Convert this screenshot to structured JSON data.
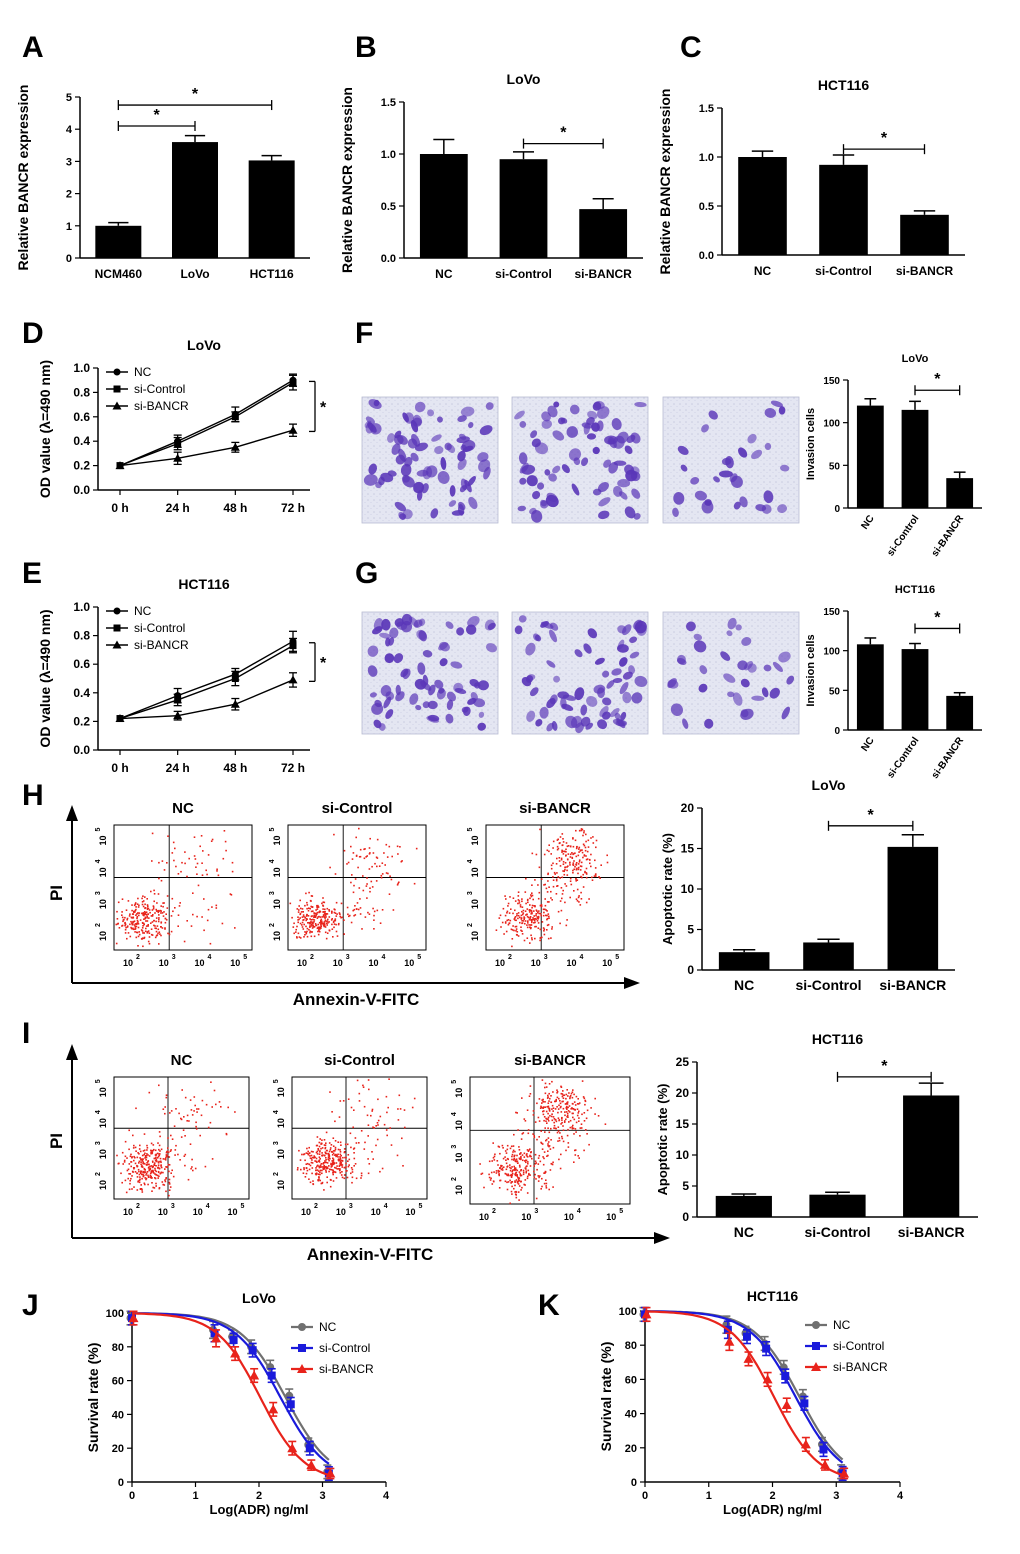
{
  "chart_data": [
    {
      "panel": "A",
      "type": "bar",
      "title": "",
      "xlabel": "",
      "ylabel": "Relative  BANCR expression",
      "categories": [
        "NCM460",
        "LoVo",
        "HCT116"
      ],
      "values": [
        1.0,
        3.6,
        3.03
      ],
      "errors": [
        0.1,
        0.2,
        0.15
      ],
      "ylim": [
        0,
        5
      ],
      "yticks": [
        "0",
        "1",
        "2",
        "3",
        "4",
        "5"
      ],
      "annotations": [
        {
          "from": 0,
          "to": 1,
          "y": 4.1,
          "text": "*"
        },
        {
          "from": 0,
          "to": 2,
          "y": 4.75,
          "text": "*"
        }
      ]
    },
    {
      "panel": "B",
      "type": "bar",
      "title": "LoVo",
      "xlabel": "",
      "ylabel": "Relative  BANCR expression",
      "categories": [
        "NC",
        "si-Control",
        "si-BANCR"
      ],
      "values": [
        1.0,
        0.95,
        0.47
      ],
      "errors": [
        0.14,
        0.07,
        0.1
      ],
      "ylim": [
        0,
        1.5
      ],
      "yticks": [
        "0.0",
        "0.5",
        "1.0",
        "1.5"
      ],
      "annotations": [
        {
          "from": 1,
          "to": 2,
          "y": 1.1,
          "text": "*"
        }
      ]
    },
    {
      "panel": "C",
      "type": "bar",
      "title": "HCT116",
      "xlabel": "",
      "ylabel": "Relative  BANCR expression",
      "categories": [
        "NC",
        "si-Control",
        "si-BANCR"
      ],
      "values": [
        1.0,
        0.92,
        0.41
      ],
      "errors": [
        0.06,
        0.1,
        0.04
      ],
      "ylim": [
        0,
        1.5
      ],
      "yticks": [
        "0.0",
        "0.5",
        "1.0",
        "1.5"
      ],
      "annotations": [
        {
          "from": 1,
          "to": 2,
          "y": 1.08,
          "text": "*"
        }
      ]
    },
    {
      "panel": "D",
      "type": "line",
      "title": "LoVo",
      "xlabel": "",
      "ylabel": "OD value (λ=490 nm)",
      "categories": [
        "0 h",
        "24 h",
        "48 h",
        "72 h"
      ],
      "series": [
        {
          "name": "NC",
          "marker": "circle",
          "values": [
            0.2,
            0.4,
            0.62,
            0.9
          ],
          "errors": [
            0,
            0.05,
            0.06,
            0.05
          ]
        },
        {
          "name": "si-Control",
          "marker": "square",
          "values": [
            0.2,
            0.38,
            0.6,
            0.88
          ],
          "errors": [
            0,
            0.05,
            0.04,
            0.06
          ]
        },
        {
          "name": "si-BANCR",
          "marker": "triangle",
          "values": [
            0.2,
            0.26,
            0.35,
            0.49
          ],
          "errors": [
            0,
            0.05,
            0.04,
            0.05
          ]
        }
      ],
      "ylim": [
        0,
        1.0
      ],
      "yticks": [
        "0.0",
        "0.2",
        "0.4",
        "0.6",
        "0.8",
        "1.0"
      ],
      "annotations": [
        {
          "text": "*"
        }
      ]
    },
    {
      "panel": "E",
      "type": "line",
      "title": "HCT116",
      "xlabel": "",
      "ylabel": "OD value (λ=490 nm)",
      "categories": [
        "0 h",
        "24 h",
        "48 h",
        "72 h"
      ],
      "series": [
        {
          "name": "NC",
          "marker": "circle",
          "values": [
            0.22,
            0.38,
            0.53,
            0.76
          ],
          "errors": [
            0,
            0.05,
            0.04,
            0.07
          ]
        },
        {
          "name": "si-Control",
          "marker": "square",
          "values": [
            0.22,
            0.35,
            0.5,
            0.73
          ],
          "errors": [
            0,
            0.04,
            0.05,
            0.05
          ]
        },
        {
          "name": "si-BANCR",
          "marker": "triangle",
          "values": [
            0.22,
            0.24,
            0.32,
            0.49
          ],
          "errors": [
            0,
            0.03,
            0.04,
            0.05
          ]
        }
      ],
      "ylim": [
        0,
        1.0
      ],
      "yticks": [
        "0.0",
        "0.2",
        "0.4",
        "0.6",
        "0.8",
        "1.0"
      ],
      "annotations": [
        {
          "text": "*"
        }
      ]
    },
    {
      "panel": "F",
      "type": "bar",
      "title": "LoVo",
      "xlabel": "",
      "ylabel": "Invasion cells",
      "categories": [
        "NC",
        "si-Control",
        "si-BANCR"
      ],
      "values": [
        120,
        115,
        35
      ],
      "errors": [
        8,
        10,
        7
      ],
      "ylim": [
        0,
        150
      ],
      "yticks": [
        "0",
        "50",
        "100",
        "150"
      ],
      "annotations": [
        {
          "from": 1,
          "to": 2,
          "y": 138,
          "text": "*"
        }
      ]
    },
    {
      "panel": "G",
      "type": "bar",
      "title": "HCT116",
      "xlabel": "",
      "ylabel": "Invasion cells",
      "categories": [
        "NC",
        "si-Control",
        "si-BANCR"
      ],
      "values": [
        108,
        102,
        43
      ],
      "errors": [
        8,
        7,
        4
      ],
      "ylim": [
        0,
        150
      ],
      "yticks": [
        "0",
        "50",
        "100",
        "150"
      ],
      "annotations": [
        {
          "from": 1,
          "to": 2,
          "y": 128,
          "text": "*"
        }
      ]
    },
    {
      "panel": "H",
      "type": "scatter",
      "kind": "flow cytometry",
      "xlabel": "Annexin-V-FITC",
      "ylabel": "PI",
      "plots": [
        "NC",
        "si-Control",
        "si-BANCR"
      ],
      "axis_ticks": [
        "10",
        "10",
        "10",
        "10"
      ],
      "tick_exponents": [
        "2",
        "3",
        "4",
        "5"
      ],
      "dot_color": "#e8231b"
    },
    {
      "panel": "H",
      "type": "bar",
      "title": "LoVo",
      "xlabel": "",
      "ylabel": "Apoptotic rate (%)",
      "categories": [
        "NC",
        "si-Control",
        "si-BANCR"
      ],
      "values": [
        2.2,
        3.4,
        15.2
      ],
      "errors": [
        0.3,
        0.4,
        1.5
      ],
      "ylim": [
        0,
        20
      ],
      "yticks": [
        "0",
        "5",
        "10",
        "15",
        "20"
      ],
      "annotations": [
        {
          "from": 1,
          "to": 2,
          "y": 17.8,
          "text": "*"
        }
      ]
    },
    {
      "panel": "I",
      "type": "scatter",
      "kind": "flow cytometry",
      "xlabel": "Annexin-V-FITC",
      "ylabel": "PI",
      "plots": [
        "NC",
        "si-Control",
        "si-BANCR"
      ],
      "axis_ticks": [
        "10",
        "10",
        "10",
        "10"
      ],
      "tick_exponents": [
        "2",
        "3",
        "4",
        "5"
      ],
      "dot_color": "#e8231b"
    },
    {
      "panel": "I",
      "type": "bar",
      "title": "HCT116",
      "xlabel": "",
      "ylabel": "Apoptotic rate (%)",
      "categories": [
        "NC",
        "si-Control",
        "si-BANCR"
      ],
      "values": [
        3.4,
        3.6,
        19.6
      ],
      "errors": [
        0.3,
        0.4,
        2.0
      ],
      "ylim": [
        0,
        25
      ],
      "yticks": [
        "0",
        "5",
        "10",
        "15",
        "20",
        "25"
      ],
      "annotations": [
        {
          "from": 1,
          "to": 2,
          "y": 22.6,
          "text": "*"
        }
      ]
    },
    {
      "panel": "J",
      "type": "line",
      "title": "LoVo",
      "xlabel": "Log(ADR) ng/ml",
      "ylabel": "Survival rate (%)",
      "x": [
        0,
        1.3,
        1.6,
        1.9,
        2.2,
        2.5,
        2.8,
        3.1
      ],
      "series": [
        {
          "name": "NC",
          "color": "#707070",
          "values": [
            97,
            90,
            86,
            80,
            68,
            51,
            22,
            6
          ],
          "errors": [
            4,
            5,
            4,
            4,
            4,
            4,
            4,
            4
          ],
          "fit": [
            0,
            2.42,
            1.1
          ]
        },
        {
          "name": "si-Control",
          "color": "#1a1adb",
          "values": [
            97,
            88,
            84,
            78,
            63,
            46,
            20,
            5
          ],
          "errors": [
            4,
            5,
            4,
            4,
            4,
            4,
            4,
            4
          ],
          "fit": [
            0,
            2.34,
            1.1
          ]
        },
        {
          "name": "si-BANCR",
          "color": "#e8231b",
          "values": [
            97,
            85,
            76,
            63,
            43,
            20,
            10,
            5
          ],
          "errors": [
            4,
            5,
            4,
            4,
            4,
            4,
            3,
            3
          ],
          "fit": [
            0,
            2.02,
            1.15
          ]
        }
      ],
      "xlim": [
        0,
        4
      ],
      "ylim": [
        0,
        100
      ],
      "xticks": [
        "0",
        "1",
        "2",
        "3",
        "4"
      ],
      "yticks": [
        "0",
        "20",
        "40",
        "60",
        "80",
        "100"
      ]
    },
    {
      "panel": "K",
      "type": "line",
      "title": "HCT116",
      "xlabel": "Log(ADR) ng/ml",
      "ylabel": "Survival rate (%)",
      "x": [
        0,
        1.3,
        1.6,
        1.9,
        2.2,
        2.5,
        2.8,
        3.1
      ],
      "series": [
        {
          "name": "NC",
          "color": "#707070",
          "values": [
            98,
            92,
            87,
            81,
            67,
            50,
            22,
            6
          ],
          "errors": [
            4,
            5,
            4,
            4,
            4,
            4,
            4,
            4
          ],
          "fit": [
            0,
            2.42,
            1.1
          ]
        },
        {
          "name": "si-Control",
          "color": "#1a1adb",
          "values": [
            98,
            89,
            85,
            78,
            62,
            46,
            19,
            5
          ],
          "errors": [
            4,
            5,
            4,
            4,
            4,
            4,
            4,
            4
          ],
          "fit": [
            0,
            2.36,
            1.1
          ]
        },
        {
          "name": "si-BANCR",
          "color": "#e8231b",
          "values": [
            98,
            82,
            72,
            60,
            45,
            22,
            10,
            5
          ],
          "errors": [
            4,
            5,
            4,
            4,
            4,
            4,
            3,
            3
          ],
          "fit": [
            0,
            2.02,
            1.15
          ]
        }
      ],
      "xlim": [
        0,
        4
      ],
      "ylim": [
        0,
        100
      ],
      "xticks": [
        "0",
        "1",
        "2",
        "3",
        "4"
      ],
      "yticks": [
        "0",
        "20",
        "40",
        "60",
        "80",
        "100"
      ]
    }
  ],
  "panel_labels": [
    "A",
    "B",
    "C",
    "D",
    "E",
    "F",
    "G",
    "H",
    "I",
    "J",
    "K"
  ],
  "micrographs": {
    "F": [
      "NC",
      "si-Control",
      "si-BANCR"
    ],
    "G": [
      "NC",
      "si-Control",
      "si-BANCR"
    ],
    "stain_color": "#5a36b8"
  }
}
